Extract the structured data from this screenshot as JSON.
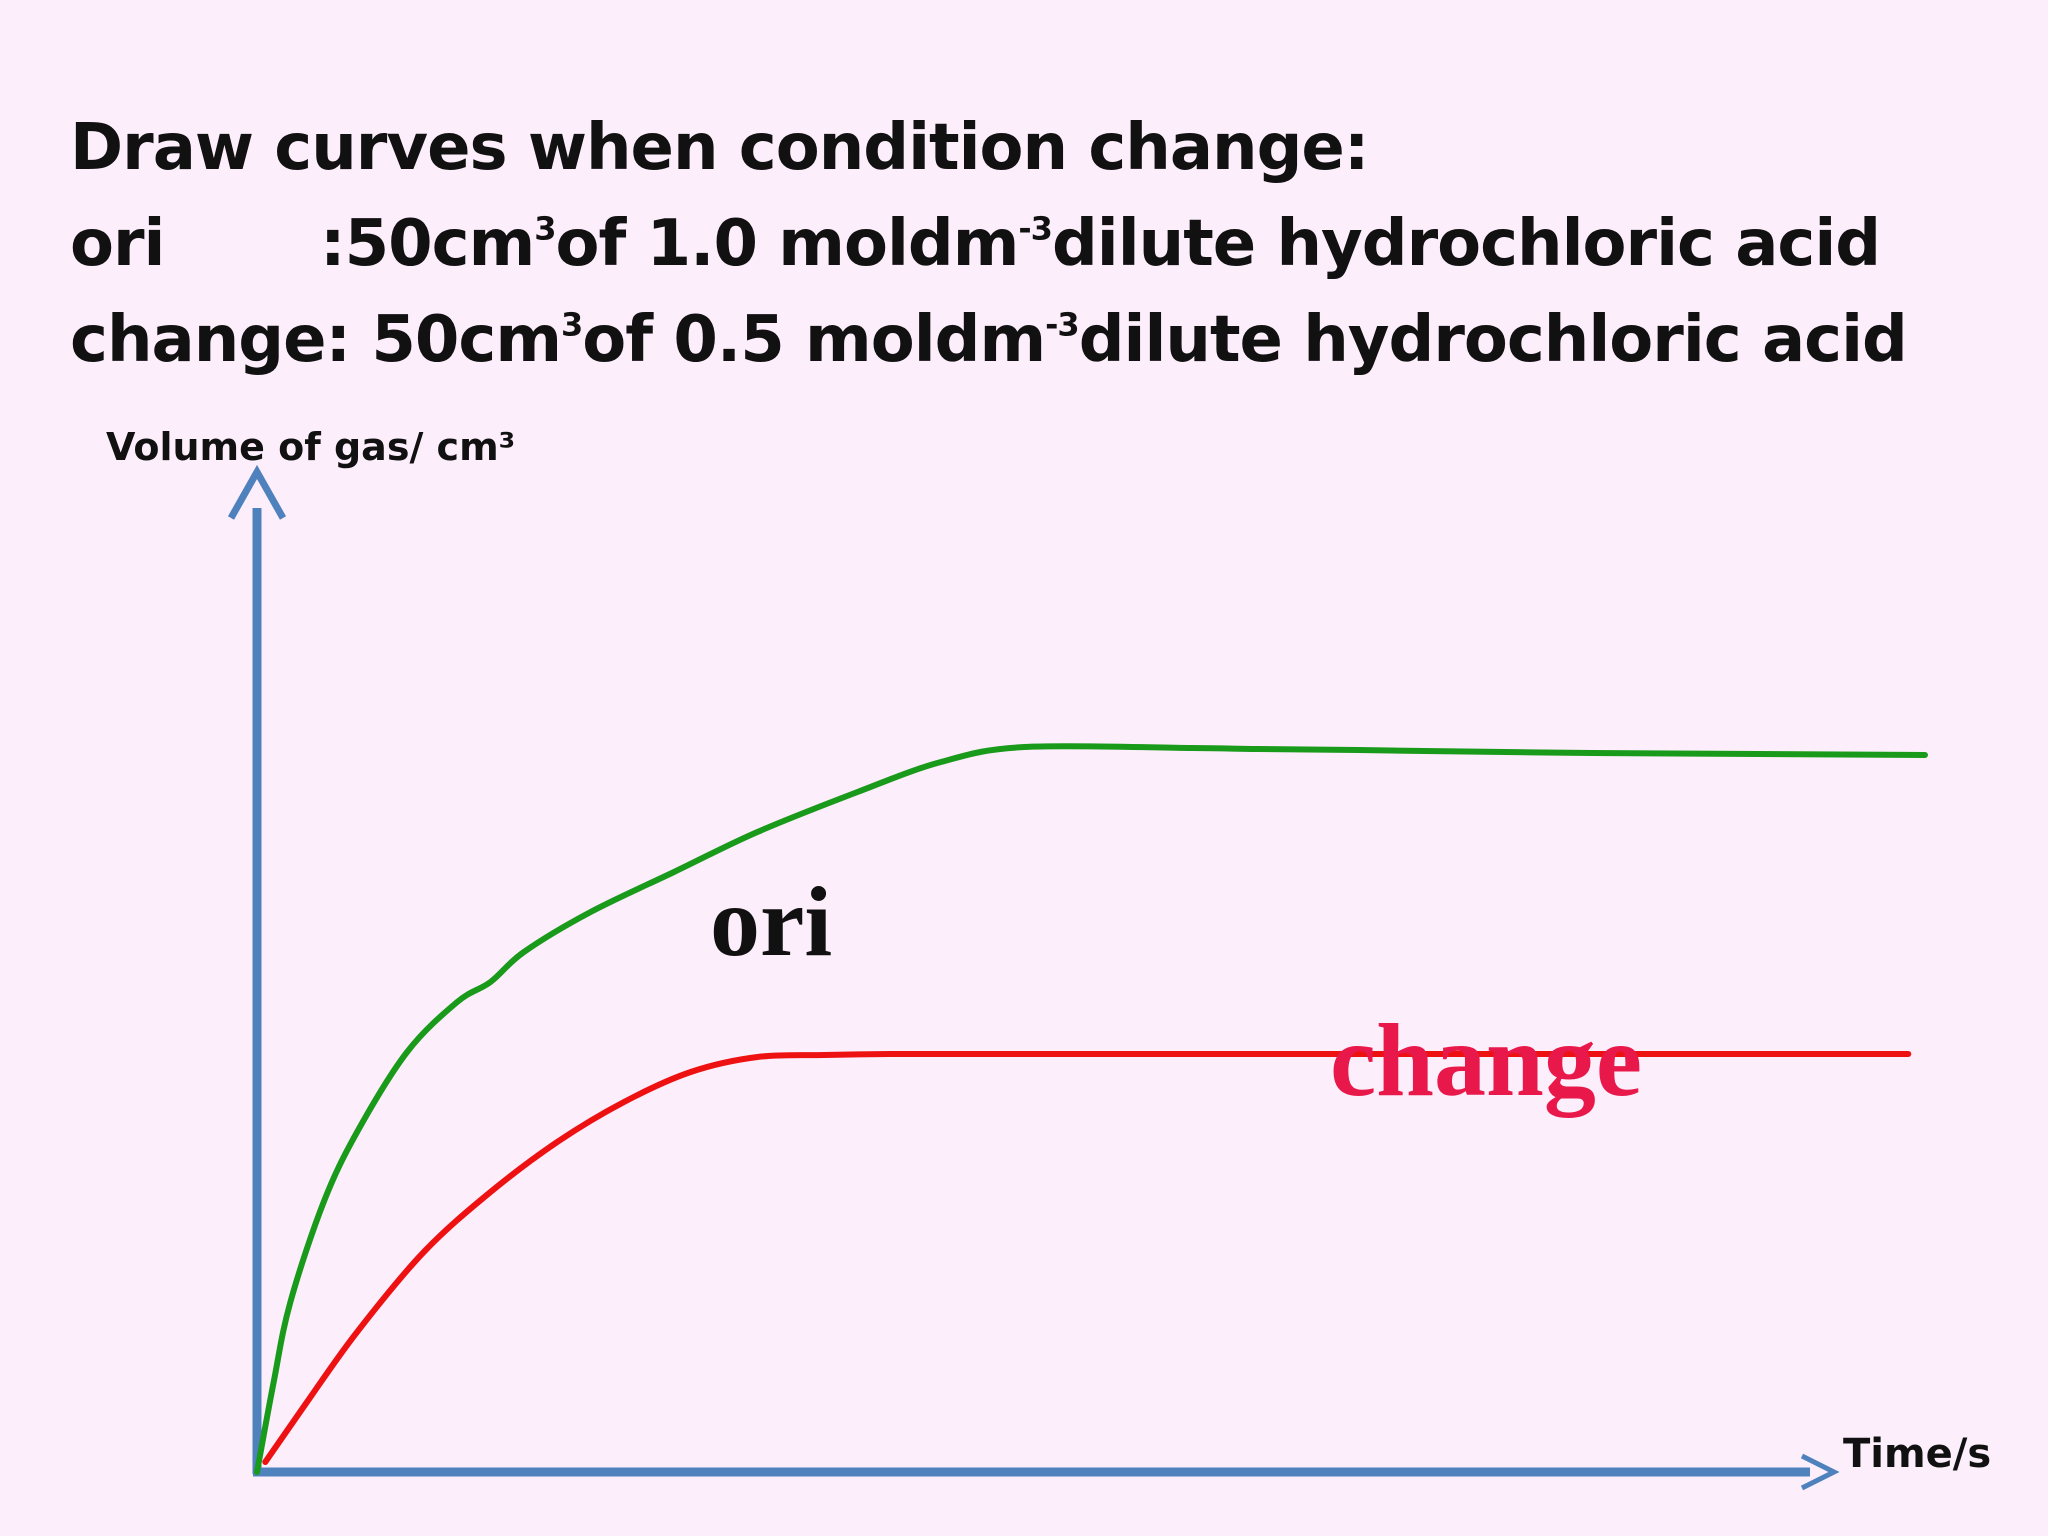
{
  "slide": {
    "title": "Draw curves when condition change:",
    "line_ori": {
      "tag": "ori",
      "prefix": ":50cm",
      "sup1": "3",
      "mid": " of 1.0 moldm",
      "sup2": "-3",
      "suffix": " dilute hydrochloric acid"
    },
    "line_change": {
      "tag": "change",
      "prefix": " : 50cm",
      "sup1": "3",
      "mid": " of 0.5 moldm",
      "sup2": "-3",
      "suffix": " dilute hydrochloric acid"
    }
  },
  "colors": {
    "background": "#fdeefb",
    "axis": "#4f81bd",
    "ori": "#1a9a1a",
    "change": "#ee1111",
    "change_label": "#e8194a",
    "text": "#111111"
  },
  "chart_data": {
    "type": "line",
    "title": "",
    "ylabel": "Volume of gas/ cm³",
    "xlabel": "Time/s",
    "xlim": [
      0,
      100
    ],
    "ylim": [
      0,
      100
    ],
    "grid": false,
    "series": [
      {
        "name": "ori",
        "color": "#1a9a1a",
        "x": [
          0,
          1,
          2,
          4,
          6,
          9,
          12,
          14,
          16,
          20,
          25,
          30,
          36,
          41,
          46,
          56,
          60,
          66,
          70,
          80,
          90,
          100
        ],
        "y": [
          0,
          9,
          17,
          27,
          34,
          42,
          47,
          49,
          52,
          56,
          60,
          64,
          68,
          71,
          72.5,
          72.4,
          72.3,
          72.2,
          72.1,
          71.9,
          71.8,
          71.7
        ]
      },
      {
        "name": "change",
        "color": "#ee1111",
        "x": [
          0.5,
          3,
          6,
          10,
          14,
          18,
          22,
          26,
          30,
          34,
          38,
          44,
          50,
          60,
          70,
          80,
          90,
          99
        ],
        "y": [
          1,
          7,
          14,
          22,
          28,
          33,
          37,
          40,
          41.5,
          41.7,
          41.8,
          41.8,
          41.8,
          41.8,
          41.8,
          41.8,
          41.8,
          41.8
        ]
      }
    ]
  }
}
